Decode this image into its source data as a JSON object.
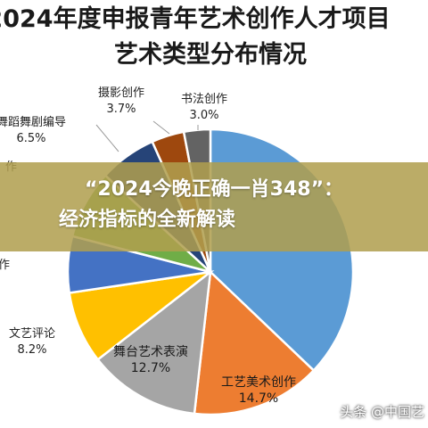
{
  "chart_data": {
    "type": "pie",
    "title": "2024年度申报青年艺术创作人才项目",
    "subtitle": "艺术类型分布情况",
    "slices": [
      {
        "label": "",
        "value": 37.2,
        "color": "#5b9bd5"
      },
      {
        "label": "工艺美术创作",
        "value": 14.7,
        "color": "#ed7d31"
      },
      {
        "label": "舞台艺术表演",
        "value": 12.7,
        "color": "#a5a5a5"
      },
      {
        "label": "文艺评论",
        "value": 8.2,
        "color": "#ffc000"
      },
      {
        "label": "",
        "value": 6.4,
        "color": "#4472c4"
      },
      {
        "label": "",
        "value": 7.8,
        "color": "#70ad47"
      },
      {
        "label": "舞蹈舞剧编导",
        "value": 6.5,
        "color": "#264478"
      },
      {
        "label": "摄影创作",
        "value": 3.7,
        "color": "#9e480e"
      },
      {
        "label": "书法创作",
        "value": 3.0,
        "color": "#636363"
      }
    ],
    "display_labels": [
      {
        "name": "书法创作",
        "pct": "3.0%"
      },
      {
        "name": "摄影创作",
        "pct": "3.7%"
      },
      {
        "name": "舞蹈舞剧编导",
        "pct": "6.5%"
      },
      {
        "name": "文艺评论",
        "pct": "8.2%"
      },
      {
        "name": "舞台艺术表演",
        "pct": "12.7%"
      },
      {
        "name": "工艺美术创作",
        "pct": "14.7%"
      }
    ],
    "partial_labels": [
      "作",
      "作"
    ],
    "legend": "none"
  },
  "banner": {
    "line1": "“2024今晚正确一肖348”：",
    "line2": "经济指标的全新解读"
  },
  "watermark": "头条 @中国艺"
}
